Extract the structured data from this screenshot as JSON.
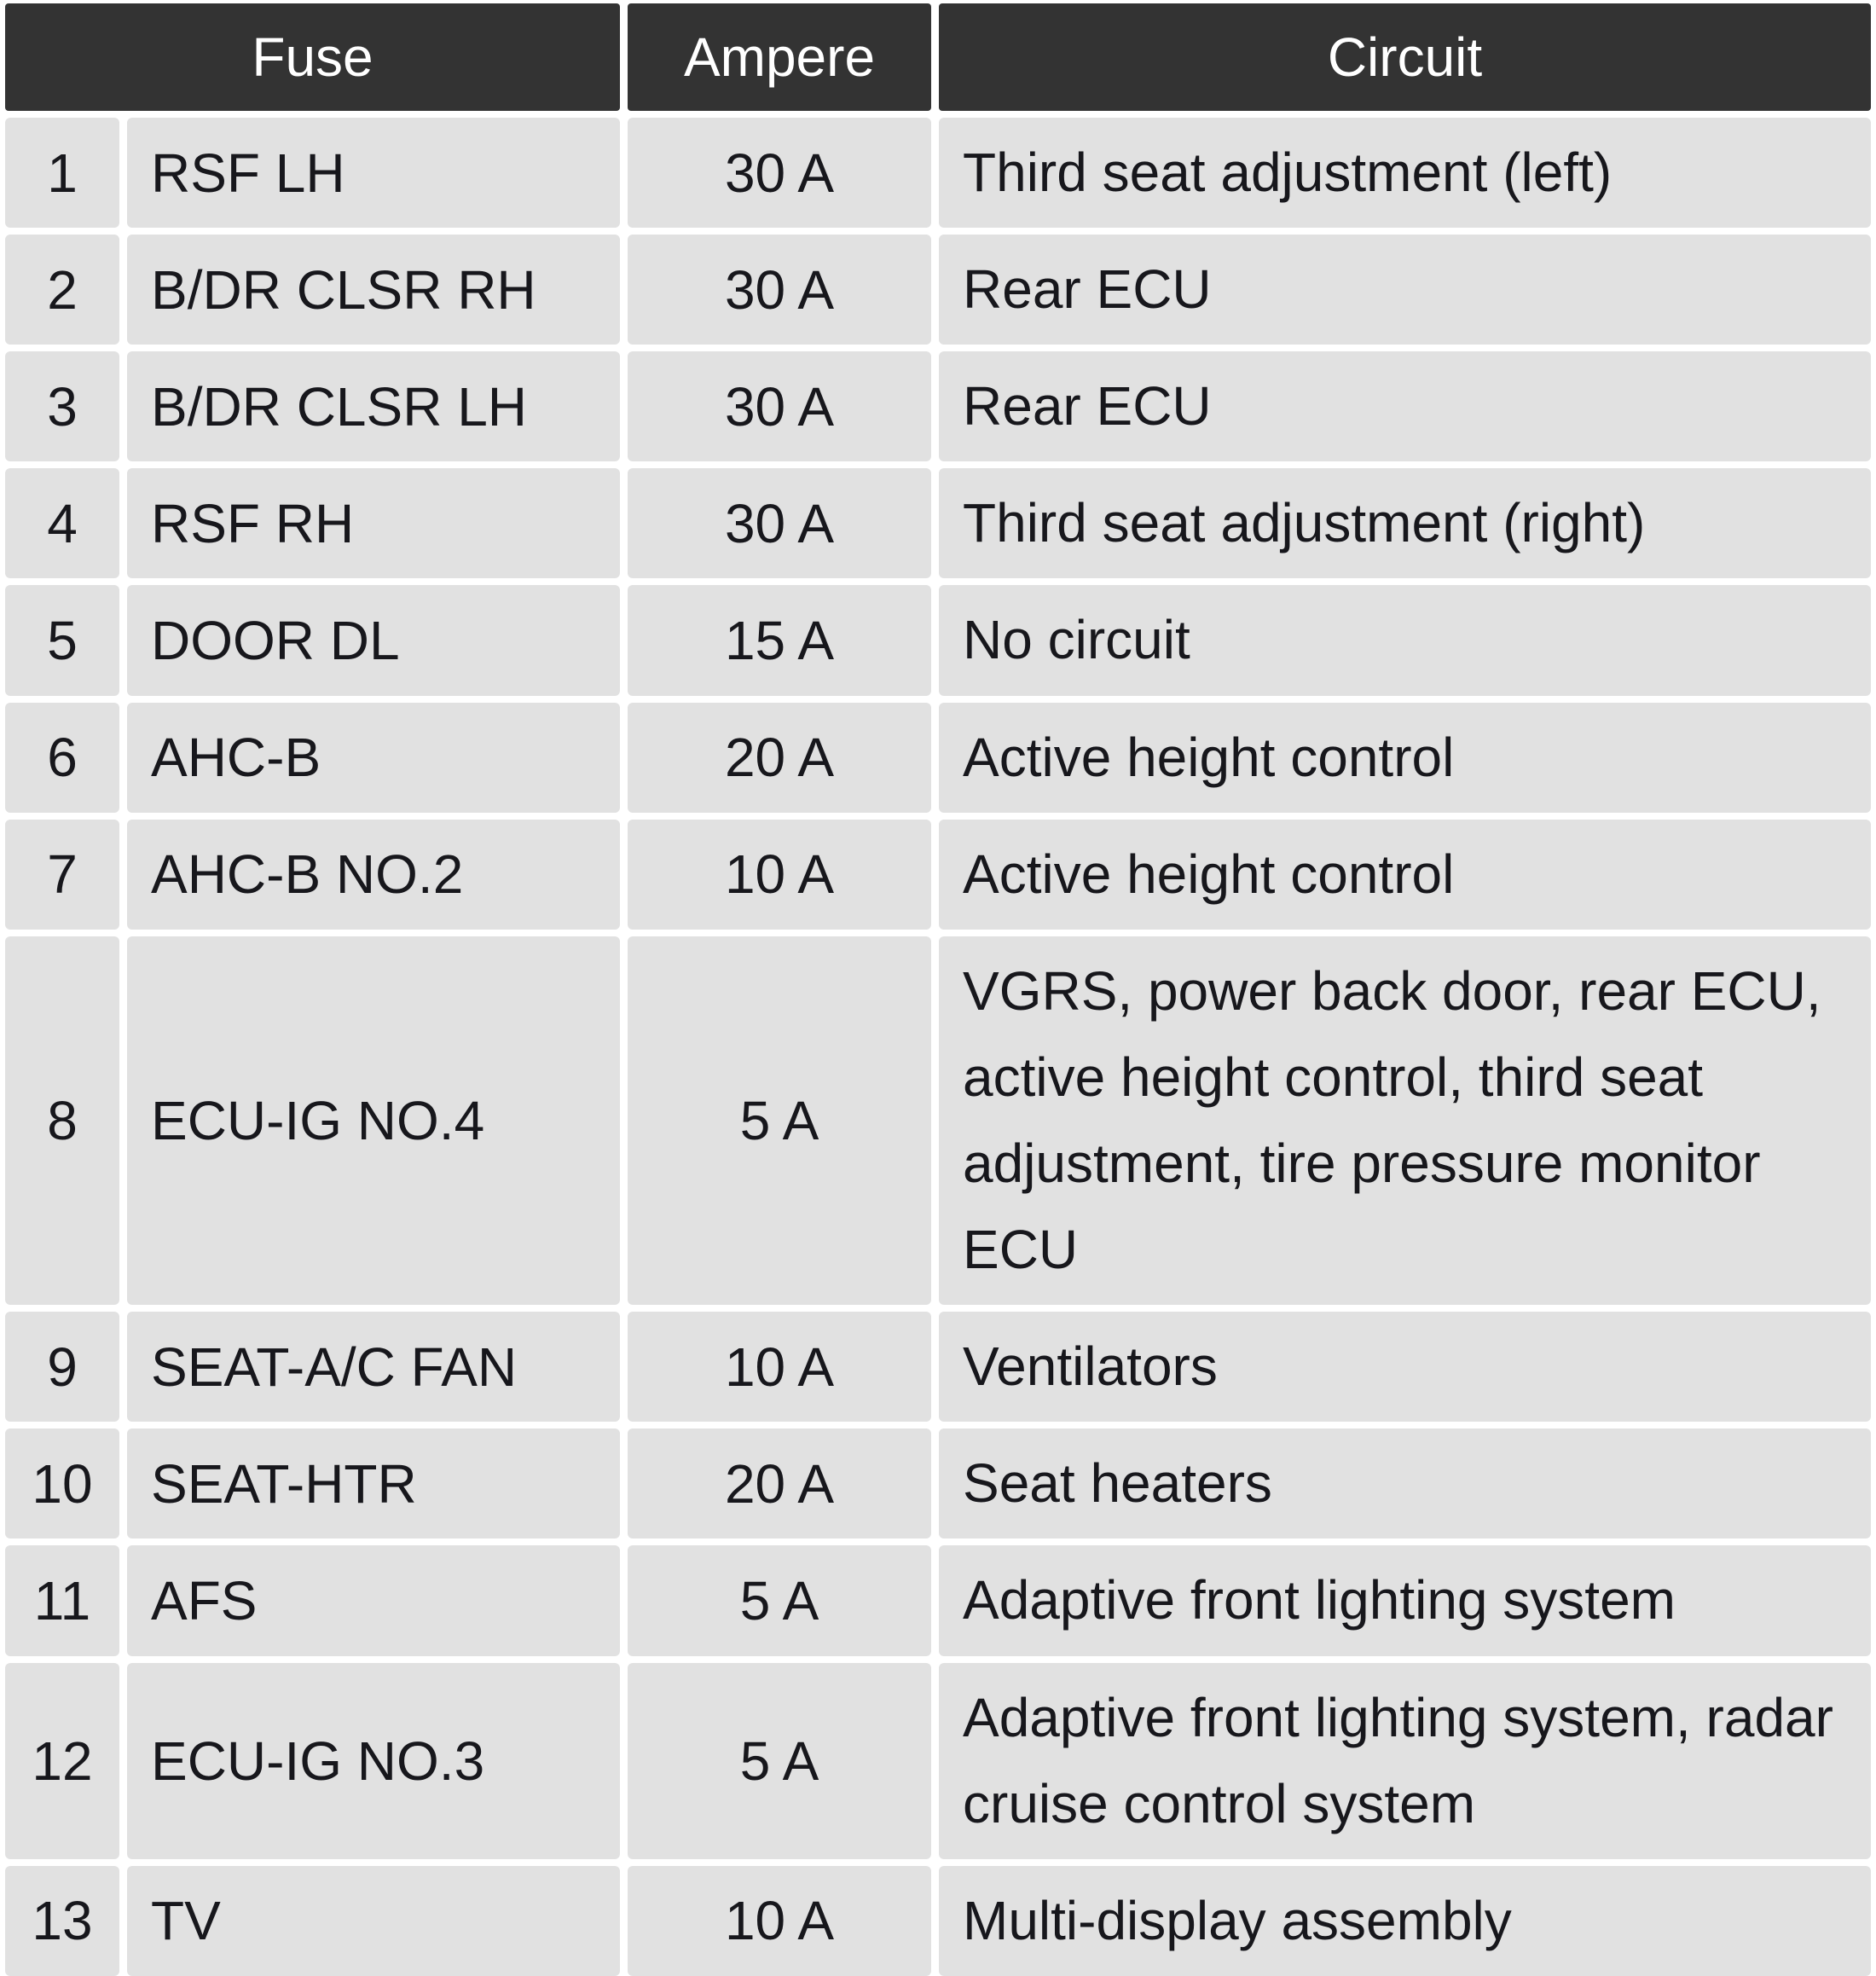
{
  "colors": {
    "header_bg": "#333333",
    "header_text": "#ffffff",
    "cell_bg": "#e1e1e1",
    "body_text": "#17171c",
    "gap": "#ffffff"
  },
  "table": {
    "headers": {
      "fuse": "Fuse",
      "ampere": "Ampere",
      "circuit": "Circuit"
    },
    "rows": [
      {
        "num": "1",
        "fuse": "RSF LH",
        "ampere": "30 A",
        "circuit": "Third seat adjustment (left)"
      },
      {
        "num": "2",
        "fuse": "B/DR CLSR RH",
        "ampere": "30 A",
        "circuit": "Rear ECU"
      },
      {
        "num": "3",
        "fuse": "B/DR CLSR LH",
        "ampere": "30 A",
        "circuit": "Rear ECU"
      },
      {
        "num": "4",
        "fuse": "RSF RH",
        "ampere": "30 A",
        "circuit": "Third seat adjustment (right)"
      },
      {
        "num": "5",
        "fuse": "DOOR DL",
        "ampere": "15 A",
        "circuit": "No circuit"
      },
      {
        "num": "6",
        "fuse": "AHC-B",
        "ampere": "20 A",
        "circuit": "Active height control"
      },
      {
        "num": "7",
        "fuse": "AHC-B NO.2",
        "ampere": "10 A",
        "circuit": "Active height control"
      },
      {
        "num": "8",
        "fuse": "ECU-IG NO.4",
        "ampere": "5 A",
        "circuit": "VGRS, power back door, rear ECU, active height control, third seat adjustment, tire pressure monitor ECU"
      },
      {
        "num": "9",
        "fuse": "SEAT-A/C FAN",
        "ampere": "10 A",
        "circuit": "Ventilators"
      },
      {
        "num": "10",
        "fuse": "SEAT-HTR",
        "ampere": "20 A",
        "circuit": "Seat heaters"
      },
      {
        "num": "11",
        "fuse": "AFS",
        "ampere": "5 A",
        "circuit": "Adaptive front lighting system"
      },
      {
        "num": "12",
        "fuse": "ECU-IG NO.3",
        "ampere": "5 A",
        "circuit": "Adaptive front lighting system, radar cruise control system"
      },
      {
        "num": "13",
        "fuse": "TV",
        "ampere": "10 A",
        "circuit": "Multi-display assembly"
      }
    ]
  }
}
